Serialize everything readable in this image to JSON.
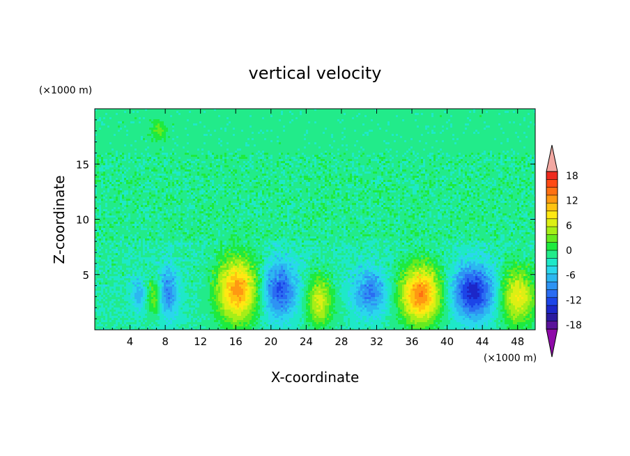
{
  "chart_data": {
    "type": "heatmap",
    "title": "vertical velocity",
    "xlabel": "X-coordinate",
    "ylabel": "Z-coordinate",
    "x_units": "(×1000 m)",
    "y_units": "(×1000 m)",
    "xlim": [
      0,
      50
    ],
    "ylim": [
      0,
      20
    ],
    "xticks": [
      4,
      8,
      12,
      16,
      20,
      24,
      28,
      32,
      36,
      40,
      44,
      48
    ],
    "yticks": [
      5,
      10,
      15
    ],
    "colorbar": {
      "levels": [
        -21,
        -19,
        -17,
        -15,
        -13,
        -11,
        -9,
        -7,
        -5,
        -3,
        -1,
        1,
        3,
        5,
        7,
        9,
        11,
        13,
        15,
        17,
        19,
        21
      ],
      "tick_labels": [
        "18",
        "12",
        "6",
        "0",
        "-6",
        "-12",
        "-18"
      ],
      "tick_values": [
        18,
        12,
        6,
        0,
        -6,
        -12,
        -18
      ],
      "colors": [
        "#8E0AA8",
        "#5A139A",
        "#2B1A9E",
        "#1C27C8",
        "#1C45E8",
        "#2A6CF2",
        "#2E93F3",
        "#2CB7F0",
        "#2AD7EC",
        "#1EE8C8",
        "#22EB8A",
        "#1EEA3E",
        "#66EA20",
        "#A6EE18",
        "#DCEF14",
        "#FFE812",
        "#FFC312",
        "#FF9912",
        "#FF7012",
        "#FF4A14",
        "#EE2A1E",
        "#F2A8A2"
      ],
      "extend": "both"
    },
    "background_value": -1,
    "features": [
      {
        "x": 16.2,
        "z": 3.6,
        "peak": 15,
        "sx": 1.6,
        "sz": 2.0,
        "kind": "updraft"
      },
      {
        "x": 37.0,
        "z": 3.2,
        "peak": 16,
        "sx": 1.6,
        "sz": 1.8,
        "kind": "updraft"
      },
      {
        "x": 25.5,
        "z": 2.6,
        "peak": 9,
        "sx": 1.0,
        "sz": 1.6,
        "kind": "updraft"
      },
      {
        "x": 48.0,
        "z": 3.0,
        "peak": 10,
        "sx": 1.4,
        "sz": 1.8,
        "kind": "updraft"
      },
      {
        "x": 6.8,
        "z": 3.0,
        "peak": 6,
        "sx": 0.6,
        "sz": 1.2,
        "kind": "updraft"
      },
      {
        "x": 43.0,
        "z": 3.4,
        "peak": -13,
        "sx": 1.7,
        "sz": 1.7,
        "kind": "downdraft"
      },
      {
        "x": 21.0,
        "z": 3.6,
        "peak": -10,
        "sx": 1.4,
        "sz": 1.8,
        "kind": "downdraft"
      },
      {
        "x": 31.2,
        "z": 3.4,
        "peak": -8,
        "sx": 1.4,
        "sz": 1.5,
        "kind": "downdraft"
      },
      {
        "x": 8.3,
        "z": 3.4,
        "peak": -8,
        "sx": 0.8,
        "sz": 1.6,
        "kind": "downdraft"
      },
      {
        "x": 5.0,
        "z": 3.2,
        "peak": -5,
        "sx": 0.6,
        "sz": 1.0,
        "kind": "downdraft"
      },
      {
        "x": 7.3,
        "z": 18.0,
        "peak": 4,
        "sx": 0.6,
        "sz": 0.6,
        "kind": "updraft"
      }
    ]
  }
}
